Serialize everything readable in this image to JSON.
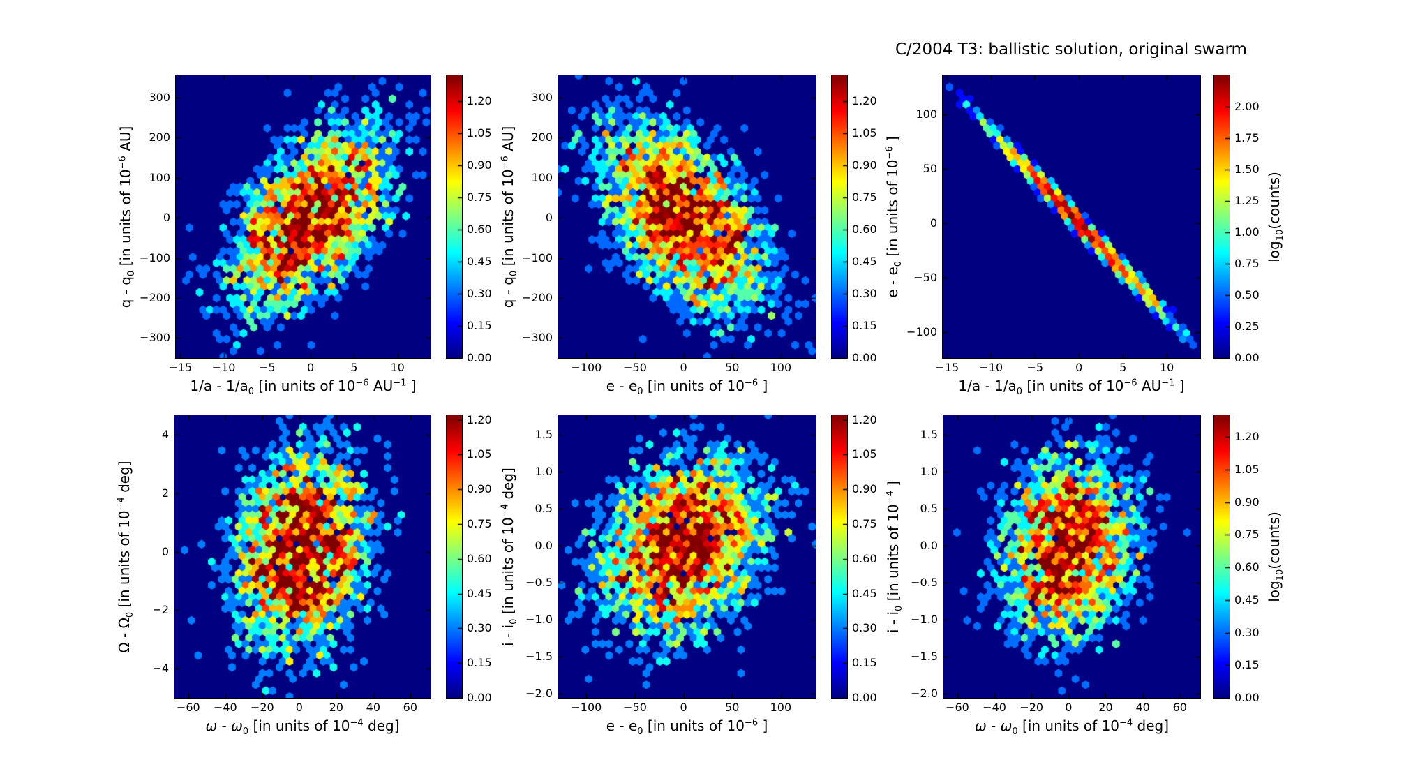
{
  "figure": {
    "title": "C/2004 T3: ballistic solution, original swarm",
    "background": "#ffffff",
    "colormap": "jet",
    "zero_count_color": "#000080"
  },
  "chart_data": [
    {
      "type": "hexbin",
      "title": "",
      "xlabel": "1/a - 1/a~0~ [in units of 10^−6^ AU^−1^ ]",
      "ylabel": "q - q~0~ [in units of 10^−6^ AU]",
      "xlim": [
        -15.5,
        13.8
      ],
      "ylim": [
        -350,
        356
      ],
      "x_tick_vals": [
        -15,
        -10,
        -5,
        0,
        5,
        10
      ],
      "x_tick_labels": [
        "−15",
        "−10",
        "−5",
        "0",
        "5",
        "10"
      ],
      "y_tick_vals": [
        300,
        200,
        100,
        0,
        -100,
        -200,
        -300
      ],
      "y_tick_labels": [
        "300",
        "200",
        "100",
        "0",
        "−100",
        "−200",
        "−300"
      ],
      "cb_tick_vals": [
        0,
        0.15,
        0.3,
        0.45,
        0.6,
        0.75,
        0.9,
        1.05,
        1.2
      ],
      "cb_tick_labels": [
        "0.00",
        "0.15",
        "0.30",
        "0.45",
        "0.60",
        "0.75",
        "0.90",
        "1.05",
        "1.20"
      ],
      "cb_vmax": 1.32,
      "cb_label": "",
      "dist": {
        "kind": "gaussian2d",
        "center": [
          0,
          0
        ],
        "sigma_x": 4.2,
        "sigma_y": 105,
        "rho": 0.55,
        "peak_count": 19
      }
    },
    {
      "type": "hexbin",
      "title": "",
      "xlabel": "e - e~0~ [in units of 10^−6^ ]",
      "ylabel": "q - q~0~ [in units of 10^−6^ AU]",
      "xlim": [
        -129,
        136
      ],
      "ylim": [
        -350,
        356
      ],
      "x_tick_vals": [
        -100,
        -50,
        0,
        50,
        100
      ],
      "x_tick_labels": [
        "−100",
        "−50",
        "0",
        "50",
        "100"
      ],
      "y_tick_vals": [
        300,
        200,
        100,
        0,
        -100,
        -200,
        -300
      ],
      "y_tick_labels": [
        "300",
        "200",
        "100",
        "0",
        "−100",
        "−200",
        "−300"
      ],
      "cb_tick_vals": [
        0,
        0.15,
        0.3,
        0.45,
        0.6,
        0.75,
        0.9,
        1.05,
        1.2
      ],
      "cb_tick_labels": [
        "0.00",
        "0.15",
        "0.30",
        "0.45",
        "0.60",
        "0.75",
        "0.90",
        "1.05",
        "1.20"
      ],
      "cb_vmax": 1.32,
      "cb_label": "",
      "dist": {
        "kind": "gaussian2d",
        "center": [
          0,
          0
        ],
        "sigma_x": 38,
        "sigma_y": 105,
        "rho": -0.5,
        "peak_count": 19
      }
    },
    {
      "type": "hexbin",
      "title": "C/2004 T3: ballistic solution, original swarm",
      "xlabel": "1/a - 1/a~0~ [in units of 10^−6^ AU^−1^ ]",
      "ylabel": "e - e~0~ [in units of 10^−6^ ]",
      "xlim": [
        -15.5,
        13.8
      ],
      "ylim": [
        -124,
        136
      ],
      "x_tick_vals": [
        -15,
        -10,
        -5,
        0,
        5,
        10
      ],
      "x_tick_labels": [
        "−15",
        "−10",
        "−5",
        "0",
        "5",
        "10"
      ],
      "y_tick_vals": [
        100,
        50,
        0,
        -50,
        -100
      ],
      "y_tick_labels": [
        "100",
        "50",
        "0",
        "−50",
        "−100"
      ],
      "cb_tick_vals": [
        0,
        0.25,
        0.5,
        0.75,
        1.0,
        1.25,
        1.5,
        1.75,
        2.0
      ],
      "cb_tick_labels": [
        "0.00",
        "0.25",
        "0.50",
        "0.75",
        "1.00",
        "1.25",
        "1.50",
        "1.75",
        "2.00"
      ],
      "cb_vmax": 2.25,
      "cb_label": "log~10~(counts)",
      "dist": {
        "kind": "line",
        "slope": -8.57,
        "intercept": 0,
        "sigma_x": 4.3,
        "peak_count": 165
      }
    },
    {
      "type": "hexbin",
      "title": "",
      "xlabel": "*ω* - *ω*~0~ [in units of 10^−4^ deg]",
      "ylabel": "Ω - Ω~0~ [in units of 10^−4^ deg]",
      "xlim": [
        -67.5,
        71
      ],
      "ylim": [
        -5.0,
        4.68
      ],
      "x_tick_vals": [
        -60,
        -40,
        -20,
        0,
        20,
        40,
        60
      ],
      "x_tick_labels": [
        "−60",
        "−40",
        "−20",
        "0",
        "20",
        "40",
        "60"
      ],
      "y_tick_vals": [
        4,
        2,
        0,
        -2,
        -4
      ],
      "y_tick_labels": [
        "4",
        "2",
        "0",
        "−2",
        "−4"
      ],
      "cb_tick_vals": [
        0,
        0.15,
        0.3,
        0.45,
        0.6,
        0.75,
        0.9,
        1.05,
        1.2
      ],
      "cb_tick_labels": [
        "0.00",
        "0.15",
        "0.30",
        "0.45",
        "0.60",
        "0.75",
        "0.90",
        "1.05",
        "1.20"
      ],
      "cb_vmax": 1.22,
      "cb_label": "",
      "dist": {
        "kind": "gaussian2d",
        "center": [
          0,
          0
        ],
        "sigma_x": 16.5,
        "sigma_y": 1.55,
        "rho": 0.15,
        "peak_count": 15
      }
    },
    {
      "type": "hexbin",
      "title": "",
      "xlabel": "e - e~0~ [in units of 10^−6^ ]",
      "ylabel": "i - i~0~ [in units of 10^−4^ deg]",
      "xlim": [
        -129,
        136
      ],
      "ylim": [
        -2.06,
        1.76
      ],
      "x_tick_vals": [
        -100,
        -50,
        0,
        50,
        100
      ],
      "x_tick_labels": [
        "−100",
        "−50",
        "0",
        "50",
        "100"
      ],
      "y_tick_vals": [
        1.5,
        1.0,
        0.5,
        0.0,
        -0.5,
        -1.0,
        -1.5,
        -2.0
      ],
      "y_tick_labels": [
        "1.5",
        "1.0",
        "0.5",
        "0.0",
        "−0.5",
        "−1.0",
        "−1.5",
        "−2.0"
      ],
      "cb_tick_vals": [
        0,
        0.15,
        0.3,
        0.45,
        0.6,
        0.75,
        0.9,
        1.05,
        1.2
      ],
      "cb_tick_labels": [
        "0.00",
        "0.15",
        "0.30",
        "0.45",
        "0.60",
        "0.75",
        "0.90",
        "1.05",
        "1.20"
      ],
      "cb_vmax": 1.22,
      "cb_label": "",
      "dist": {
        "kind": "gaussian2d",
        "center": [
          0,
          0
        ],
        "sigma_x": 38,
        "sigma_y": 0.55,
        "rho": 0.25,
        "peak_count": 15
      }
    },
    {
      "type": "hexbin",
      "title": "",
      "xlabel": "*ω* - *ω*~0~ [in units of 10^−4^ deg]",
      "ylabel": "i - i~0~ [in units of 10^−4^ ]",
      "xlim": [
        -67.5,
        71
      ],
      "ylim": [
        -2.06,
        1.76
      ],
      "x_tick_vals": [
        -60,
        -40,
        -20,
        0,
        20,
        40,
        60
      ],
      "x_tick_labels": [
        "−60",
        "−40",
        "−20",
        "0",
        "20",
        "40",
        "60"
      ],
      "y_tick_vals": [
        1.5,
        1.0,
        0.5,
        0.0,
        -0.5,
        -1.0,
        -1.5,
        -2.0
      ],
      "y_tick_labels": [
        "1.5",
        "1.0",
        "0.5",
        "0.0",
        "−0.5",
        "−1.0",
        "−1.5",
        "−2.0"
      ],
      "cb_tick_vals": [
        0,
        0.15,
        0.3,
        0.45,
        0.6,
        0.75,
        0.9,
        1.05,
        1.2
      ],
      "cb_tick_labels": [
        "0.00",
        "0.15",
        "0.30",
        "0.45",
        "0.60",
        "0.75",
        "0.90",
        "1.05",
        "1.20"
      ],
      "cb_vmax": 1.3,
      "cb_label": "log~10~(counts)",
      "dist": {
        "kind": "gaussian2d",
        "center": [
          0,
          0
        ],
        "sigma_x": 16,
        "sigma_y": 0.55,
        "rho": 0.1,
        "peak_count": 18
      }
    }
  ]
}
